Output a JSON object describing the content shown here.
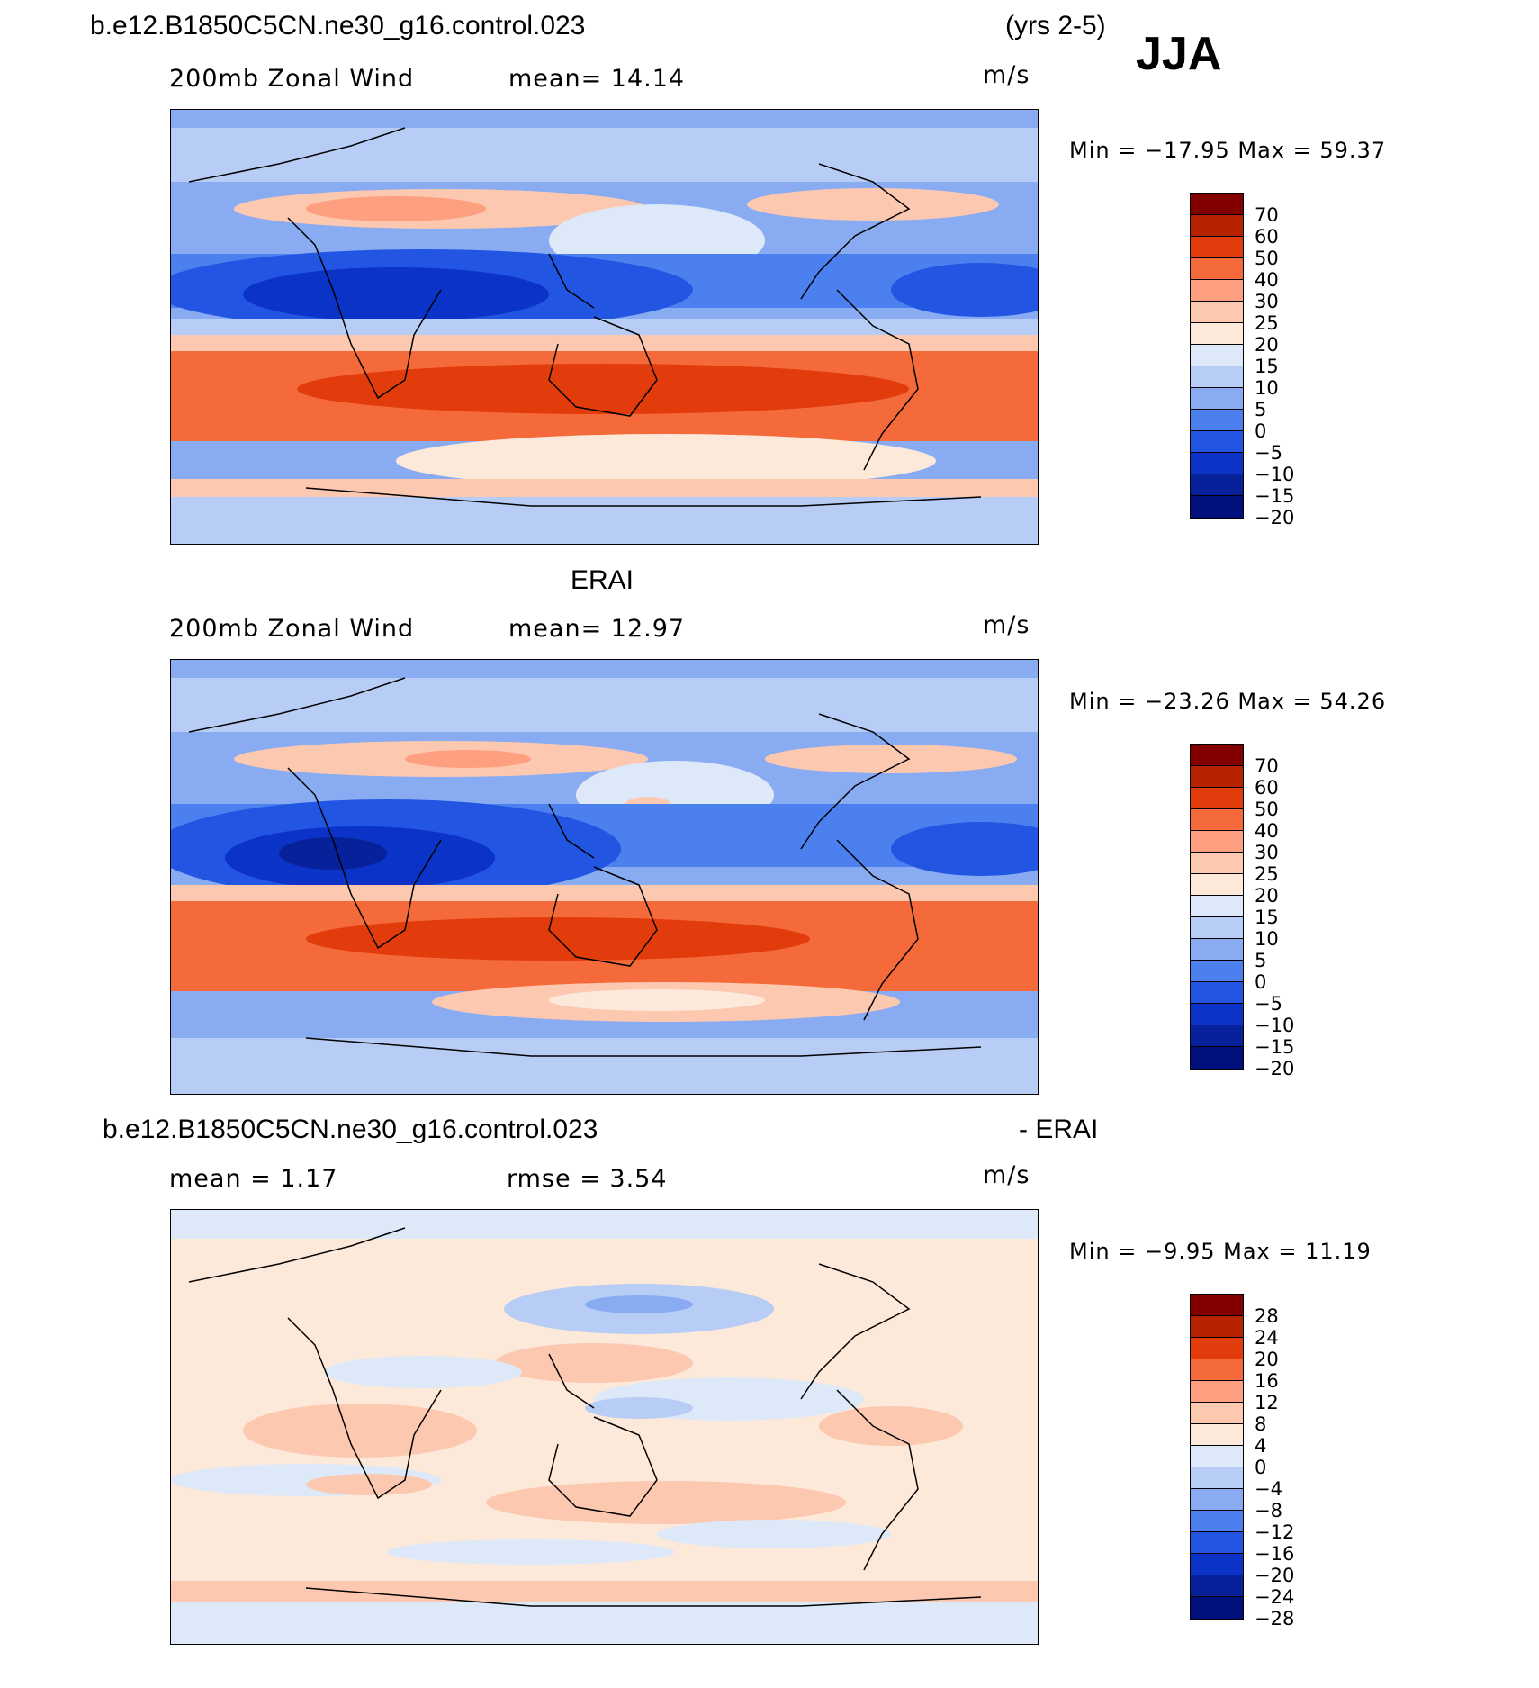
{
  "header": {
    "case_title": "b.e12.B1850C5CN.ne30_g16.control.023",
    "years": "(yrs 2-5)",
    "season": "JJA"
  },
  "panels": [
    {
      "id": "model",
      "title": "",
      "variable": "200mb Zonal Wind",
      "mean_label": "mean=   14.14",
      "units": "m/s",
      "minmax": "Min  =  −17.95  Max  =    59.37",
      "colors": [
        "#830000",
        "#b72200",
        "#e23c0d",
        "#f56a3a",
        "#fe9f80",
        "#fdc8b0",
        "#fde9da",
        "#dde9f8",
        "#b8cdf5",
        "#88abf2",
        "#4c80ef",
        "#2355e3",
        "#0c33c7",
        "#06219a",
        "#00117d"
      ],
      "levels": [
        "70",
        "60",
        "50",
        "40",
        "30",
        "25",
        "20",
        "15",
        "10",
        "5",
        "0",
        "−5",
        "−10",
        "−15",
        "−20"
      ]
    },
    {
      "id": "obs",
      "title": "ERAI",
      "variable": "200mb Zonal Wind",
      "mean_label": "mean=   12.97",
      "units": "m/s",
      "minmax": "Min  =  −23.26  Max  =    54.26",
      "colors": [
        "#830000",
        "#b72200",
        "#e23c0d",
        "#f56a3a",
        "#fe9f80",
        "#fdc8b0",
        "#fde9da",
        "#dde9f8",
        "#b8cdf5",
        "#88abf2",
        "#4c80ef",
        "#2355e3",
        "#0c33c7",
        "#06219a",
        "#00117d"
      ],
      "levels": [
        "70",
        "60",
        "50",
        "40",
        "30",
        "25",
        "20",
        "15",
        "10",
        "5",
        "0",
        "−5",
        "−10",
        "−15",
        "−20"
      ]
    },
    {
      "id": "diff",
      "title_left": "b.e12.B1850C5CN.ne30_g16.control.023",
      "title_right": "- ERAI",
      "mean_label": "mean  =     1.17",
      "rmse_label": "rmse  =     3.54",
      "units": "m/s",
      "minmax": "Min  =     −9.95  Max  =    11.19",
      "colors": [
        "#830000",
        "#b72200",
        "#e23c0d",
        "#f56a3a",
        "#fe9f80",
        "#fdc8b0",
        "#fde9da",
        "#dde9f8",
        "#b8cdf5",
        "#88abf2",
        "#4c80ef",
        "#2355e3",
        "#0c33c7",
        "#06219a",
        "#00117d"
      ],
      "levels": [
        "28",
        "24",
        "20",
        "16",
        "12",
        "8",
        "4",
        "0",
        "−4",
        "−8",
        "−12",
        "−16",
        "−20",
        "−24",
        "−28"
      ]
    }
  ]
}
